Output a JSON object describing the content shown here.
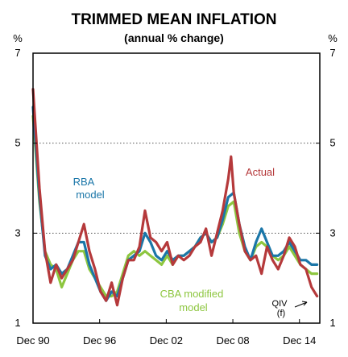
{
  "chart_data": {
    "type": "line",
    "title": "TRIMMED MEAN INFLATION",
    "subtitle": "(annual % change)",
    "left_unit": "%",
    "right_unit": "%",
    "ylim": [
      1,
      7
    ],
    "xlim": [
      1990.917,
      2016.75
    ],
    "y_ticks": [
      1,
      3,
      5,
      7
    ],
    "y_tick_labels": [
      "1",
      "3",
      "5",
      "7"
    ],
    "x_ticks": [
      1990.917,
      1996.917,
      2002.917,
      2008.917,
      2014.917
    ],
    "x_tick_labels": [
      "Dec 90",
      "Dec 96",
      "Dec 02",
      "Dec 08",
      "Dec 14"
    ],
    "grid": "dotted horizontal at 3 and 5",
    "colors": {
      "actual": "#b5393b",
      "rba": "#1a76a8",
      "cba": "#8dc63f",
      "grid": "#555555",
      "frame": "#000000"
    },
    "annotations": {
      "rba_line1": "RBA",
      "rba_line2": "model",
      "actual": "Actual",
      "cba_line1": "CBA modified",
      "cba_line2": "model",
      "qiv_line1": "QIV",
      "qiv_line2": "(f)"
    },
    "series": [
      {
        "key": "actual",
        "name": "Actual",
        "x": [
          1990.92,
          1991.5,
          1992.0,
          1992.5,
          1993.0,
          1993.5,
          1994.0,
          1994.5,
          1995.0,
          1995.5,
          1996.0,
          1996.5,
          1997.0,
          1997.5,
          1998.0,
          1998.5,
          1999.0,
          1999.5,
          2000.0,
          2000.5,
          2001.0,
          2001.5,
          2002.0,
          2002.5,
          2003.0,
          2003.5,
          2004.0,
          2004.5,
          2005.0,
          2005.5,
          2006.0,
          2006.5,
          2007.0,
          2007.5,
          2008.0,
          2008.5,
          2008.75,
          2009.0,
          2009.5,
          2010.0,
          2010.5,
          2011.0,
          2011.5,
          2012.0,
          2012.5,
          2013.0,
          2013.5,
          2014.0,
          2014.5,
          2015.0,
          2015.5,
          2016.0,
          2016.5
        ],
        "y": [
          6.2,
          4.0,
          2.6,
          1.9,
          2.3,
          2.0,
          2.2,
          2.4,
          2.8,
          3.2,
          2.6,
          2.2,
          1.7,
          1.5,
          1.9,
          1.4,
          2.0,
          2.4,
          2.4,
          2.7,
          3.5,
          2.9,
          2.8,
          2.6,
          2.8,
          2.3,
          2.5,
          2.4,
          2.5,
          2.7,
          2.8,
          3.1,
          2.5,
          3.0,
          3.5,
          4.2,
          4.7,
          3.9,
          3.2,
          2.6,
          2.4,
          2.5,
          2.1,
          2.7,
          2.4,
          2.2,
          2.5,
          2.9,
          2.7,
          2.3,
          2.2,
          1.8,
          1.6
        ]
      },
      {
        "key": "rba",
        "name": "RBA model",
        "x": [
          1990.92,
          1991.5,
          1992.0,
          1992.5,
          1993.0,
          1993.5,
          1994.0,
          1994.5,
          1995.0,
          1995.5,
          1996.0,
          1996.5,
          1997.0,
          1997.5,
          1998.0,
          1998.5,
          1999.0,
          1999.5,
          2000.0,
          2000.5,
          2001.0,
          2001.5,
          2002.0,
          2002.5,
          2003.0,
          2003.5,
          2004.0,
          2004.5,
          2005.0,
          2005.5,
          2006.0,
          2006.5,
          2007.0,
          2007.5,
          2008.0,
          2008.5,
          2009.0,
          2009.5,
          2010.0,
          2010.5,
          2011.0,
          2011.5,
          2012.0,
          2012.5,
          2013.0,
          2013.5,
          2014.0,
          2014.5,
          2015.0,
          2015.5,
          2016.0,
          2016.5
        ],
        "y": [
          5.8,
          3.8,
          2.5,
          2.2,
          2.3,
          2.1,
          2.2,
          2.5,
          2.8,
          2.8,
          2.3,
          2.0,
          1.7,
          1.5,
          1.7,
          1.6,
          2.0,
          2.4,
          2.5,
          2.6,
          3.0,
          2.8,
          2.5,
          2.4,
          2.6,
          2.4,
          2.5,
          2.5,
          2.6,
          2.7,
          2.9,
          3.0,
          2.8,
          2.9,
          3.3,
          3.8,
          3.9,
          3.2,
          2.7,
          2.4,
          2.8,
          3.1,
          2.8,
          2.5,
          2.5,
          2.6,
          2.8,
          2.6,
          2.4,
          2.4,
          2.3,
          2.3
        ]
      },
      {
        "key": "cba",
        "name": "CBA modified model",
        "x": [
          1990.92,
          1991.5,
          1992.0,
          1992.5,
          1993.0,
          1993.5,
          1994.0,
          1994.5,
          1995.0,
          1995.5,
          1996.0,
          1996.5,
          1997.0,
          1997.5,
          1998.0,
          1998.5,
          1999.0,
          1999.5,
          2000.0,
          2000.5,
          2001.0,
          2001.5,
          2002.0,
          2002.5,
          2003.0,
          2003.5,
          2004.0,
          2004.5,
          2005.0,
          2005.5,
          2006.0,
          2006.5,
          2007.0,
          2007.5,
          2008.0,
          2008.5,
          2009.0,
          2009.5,
          2010.0,
          2010.5,
          2011.0,
          2011.5,
          2012.0,
          2012.5,
          2013.0,
          2013.5,
          2014.0,
          2014.5,
          2015.0,
          2015.5,
          2016.0,
          2016.5
        ],
        "y": [
          5.6,
          3.7,
          2.6,
          2.3,
          2.2,
          1.8,
          2.1,
          2.4,
          2.6,
          2.6,
          2.2,
          2.0,
          1.8,
          1.6,
          1.6,
          1.7,
          2.1,
          2.5,
          2.6,
          2.5,
          2.6,
          2.5,
          2.4,
          2.3,
          2.5,
          2.3,
          2.5,
          2.5,
          2.6,
          2.7,
          2.9,
          3.0,
          2.8,
          2.9,
          3.2,
          3.6,
          3.7,
          3.0,
          2.6,
          2.4,
          2.7,
          2.8,
          2.7,
          2.5,
          2.4,
          2.5,
          2.7,
          2.5,
          2.3,
          2.2,
          2.1,
          2.1
        ]
      }
    ]
  }
}
